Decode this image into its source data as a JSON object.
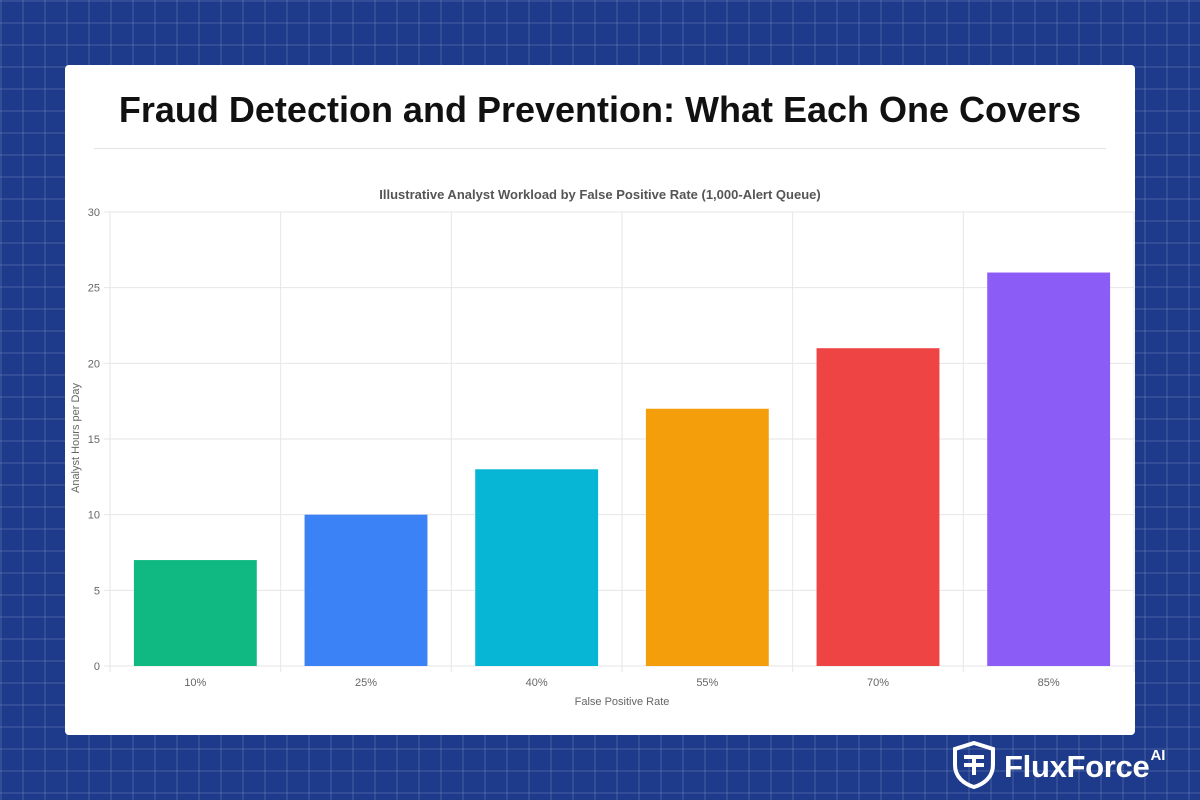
{
  "page": {
    "title": "Fraud Detection and Prevention: What Each One Covers"
  },
  "brand": {
    "name": "FluxForce",
    "suffix": "AI",
    "icon": "shield-logo-icon",
    "background_color": "#1e3a8a"
  },
  "chart_data": {
    "type": "bar",
    "title": "Illustrative Analyst Workload by False Positive Rate (1,000-Alert Queue)",
    "xlabel": "False Positive Rate",
    "ylabel": "Analyst Hours per Day",
    "categories": [
      "10%",
      "25%",
      "40%",
      "55%",
      "70%",
      "85%"
    ],
    "values": [
      7,
      10,
      13,
      17,
      21,
      26
    ],
    "colors": [
      "#10b981",
      "#3b82f6",
      "#06b6d4",
      "#f59e0b",
      "#ef4444",
      "#8b5cf6"
    ],
    "ylim": [
      0,
      30
    ],
    "yticks": [
      0,
      5,
      10,
      15,
      20,
      25,
      30
    ],
    "grid": true,
    "legend": "none"
  }
}
